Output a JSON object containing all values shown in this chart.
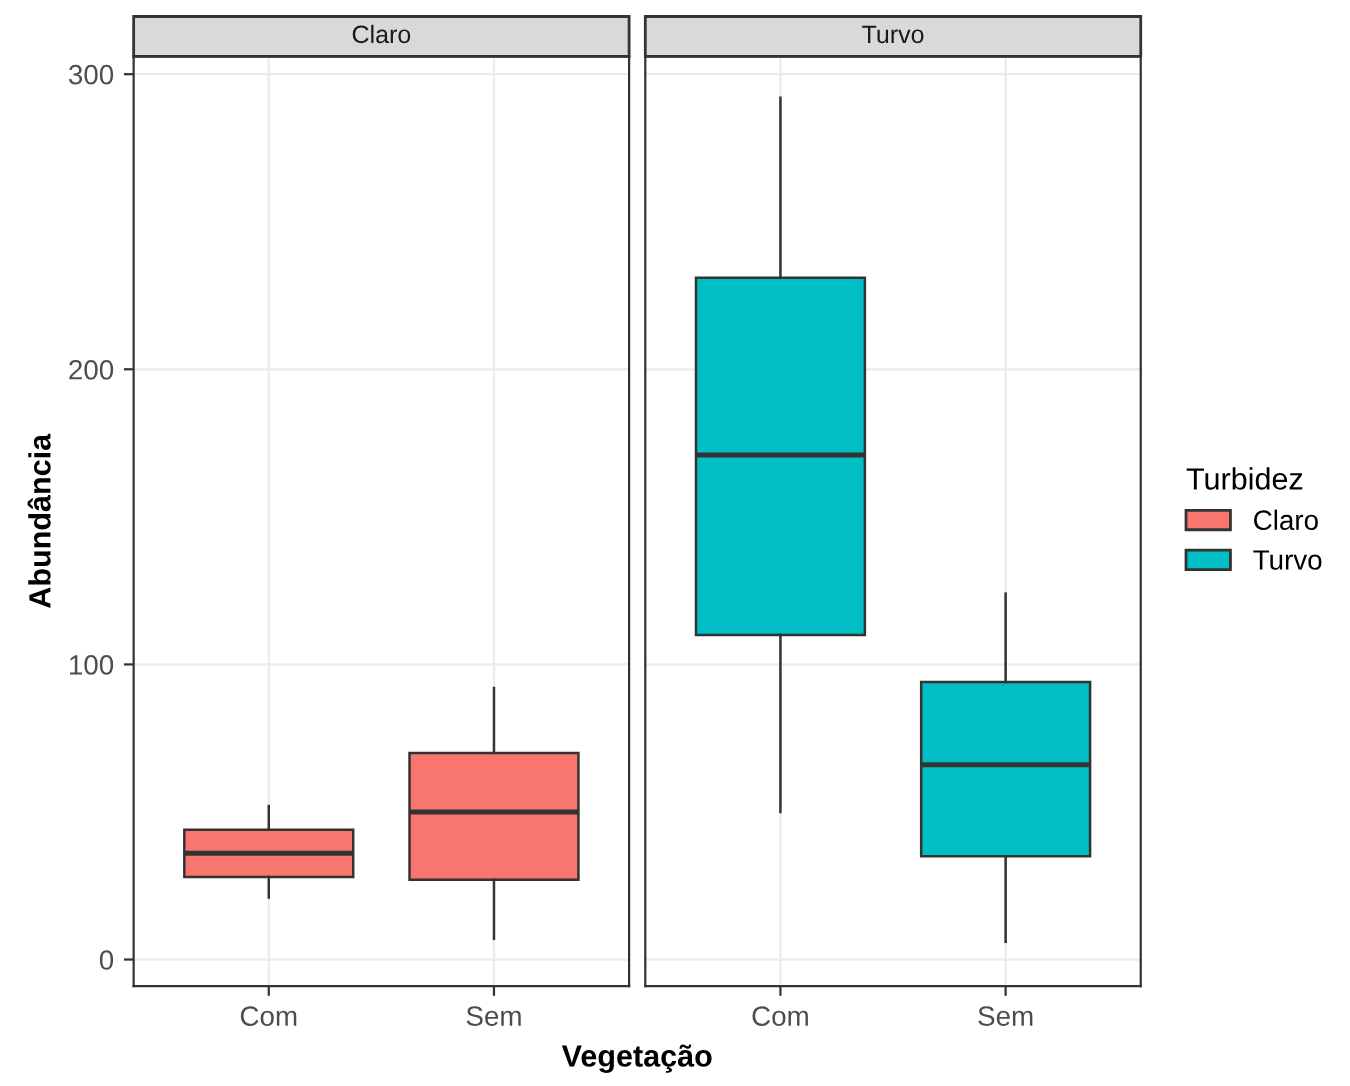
{
  "chart_data": [
    {
      "type": "box",
      "title": "Claro",
      "ylabel": "Abundância",
      "xlabel": "Vegetação",
      "categories": [
        "Com",
        "Sem"
      ],
      "ylim": [
        -9,
        306
      ],
      "yticks": [
        0,
        100,
        200,
        300
      ],
      "grid": true,
      "legend": "right",
      "legend_title": "Turbidez",
      "series": [
        {
          "name": "Claro",
          "color": "#f8766d",
          "boxes": [
            {
              "low": 21,
              "q1": 28,
              "median": 36,
              "q3": 44,
              "high": 52
            },
            {
              "low": 7,
              "q1": 27,
              "median": 50,
              "q3": 70,
              "high": 92
            }
          ]
        }
      ]
    },
    {
      "type": "box",
      "title": "Turvo",
      "categories": [
        "Com",
        "Sem"
      ],
      "ylim": [
        -9,
        306
      ],
      "yticks": [
        0,
        100,
        200,
        300
      ],
      "grid": true,
      "legend": "right",
      "tick_labels": "x",
      "series": [
        {
          "name": "Turvo",
          "color": "#00bfc4",
          "boxes": [
            {
              "low": 50,
              "q1": 110,
              "median": 171,
              "q3": 231,
              "high": 292
            },
            {
              "low": 6,
              "q1": 35,
              "median": 66,
              "q3": 94,
              "high": 124
            }
          ]
        }
      ]
    }
  ]
}
